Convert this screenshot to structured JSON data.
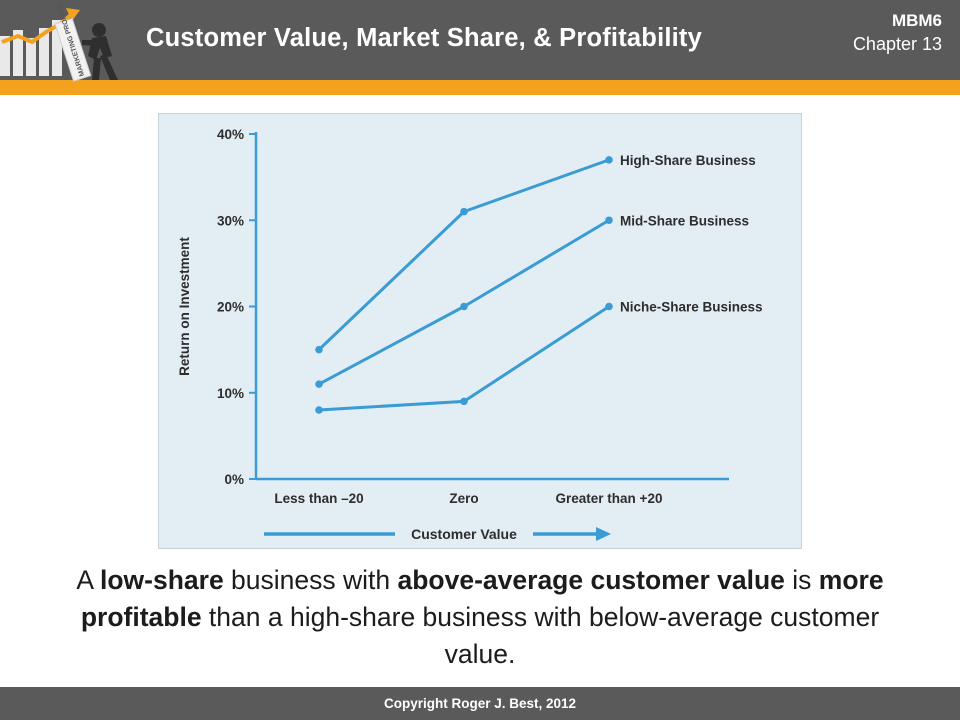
{
  "header": {
    "title": "Customer Value, Market Share, & Profitability",
    "badge_code": "MBM6",
    "badge_chapter": "Chapter 13",
    "logo_icon": "person-pushing-growth-chart-icon",
    "logo_sign_text": "MARKETING PROFITS",
    "colors": {
      "bar": "#5a5a5a",
      "stripe": "#f4a11e"
    }
  },
  "chart_data": {
    "type": "line",
    "categories": [
      "Less than –20",
      "Zero",
      "Greater than +20"
    ],
    "ylabel": "Return on Investment",
    "xlabel": "Customer Value",
    "ylim": [
      0,
      40
    ],
    "yticks": [
      "0%",
      "10%",
      "20%",
      "30%",
      "40%"
    ],
    "ytick_values": [
      0,
      10,
      20,
      30,
      40
    ],
    "grid": false,
    "series": [
      {
        "name": "High-Share Business",
        "values": [
          15,
          31,
          37
        ]
      },
      {
        "name": "Mid-Share Business",
        "values": [
          11,
          20,
          30
        ]
      },
      {
        "name": "Niche-Share Business",
        "values": [
          8,
          9,
          20
        ]
      }
    ],
    "colors": {
      "line": "#3a9bd5",
      "axis": "#3a9bd5",
      "background": "#e3eef4"
    }
  },
  "caption": {
    "p1": "A ",
    "b1": "low-share",
    "p2": " business with ",
    "b2": "above-average customer value",
    "p3": " is ",
    "b3": "more profitable",
    "p4": " than a high-share business with below-average customer value."
  },
  "footer": {
    "copyright": "Copyright Roger J. Best, 2012"
  }
}
